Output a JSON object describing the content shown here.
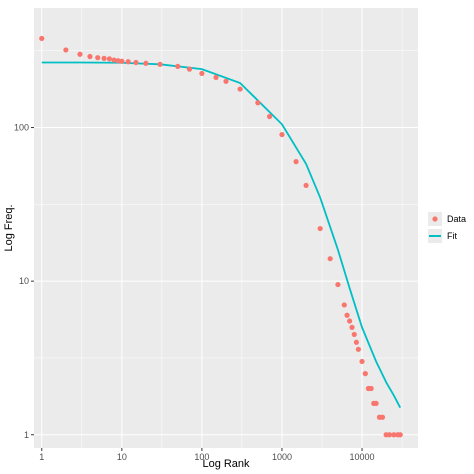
{
  "chart_data": {
    "type": "scatter",
    "xlabel": "Log Rank",
    "ylabel": "Log Freq.",
    "x_scale": "log10",
    "y_scale": "log10",
    "xlim": [
      0.8,
      50000
    ],
    "ylim": [
      0.82,
      600
    ],
    "x_ticks": [
      {
        "value": 1,
        "label": "1"
      },
      {
        "value": 10,
        "label": "10"
      },
      {
        "value": 100,
        "label": "100"
      },
      {
        "value": 1000,
        "label": "1000"
      },
      {
        "value": 10000,
        "label": "10000"
      }
    ],
    "y_ticks": [
      {
        "value": 1,
        "label": "1"
      },
      {
        "value": 10,
        "label": "10"
      },
      {
        "value": 100,
        "label": "100"
      }
    ],
    "grid": true,
    "legend_position": "right",
    "colors": {
      "panel_bg": "#ebebeb",
      "grid": "#ffffff",
      "data": "#f8766d",
      "fit": "#00bfc4"
    },
    "series": [
      {
        "name": "Data",
        "kind": "points",
        "x": [
          1,
          2,
          3,
          4,
          5,
          6,
          7,
          8,
          9,
          10,
          12,
          15,
          20,
          30,
          50,
          70,
          100,
          150,
          200,
          300,
          500,
          700,
          1000,
          1500,
          2000,
          3000,
          4000,
          5000,
          6000,
          6500,
          7000,
          7500,
          8000,
          8500,
          9000,
          10000,
          11000,
          12000,
          13000,
          14000,
          15000,
          16500,
          18000,
          20000,
          22000,
          25000,
          28000,
          30000
        ],
        "y": [
          380,
          320,
          300,
          290,
          285,
          282,
          280,
          275,
          272,
          270,
          268,
          265,
          262,
          258,
          250,
          240,
          225,
          212,
          200,
          178,
          145,
          118,
          90,
          60,
          42,
          22,
          14,
          9.5,
          7,
          6,
          5.5,
          5,
          4.5,
          4,
          3.6,
          3,
          2.5,
          2,
          2,
          1.6,
          1.6,
          1.3,
          1.3,
          1,
          1,
          1,
          1,
          1
        ]
      },
      {
        "name": "Fit",
        "kind": "line",
        "x": [
          1,
          3,
          10,
          30,
          100,
          300,
          1000,
          2000,
          3000,
          5000,
          7000,
          10000,
          15000,
          20000,
          25000,
          30000
        ],
        "y": [
          265,
          265,
          264,
          258,
          240,
          195,
          105,
          58,
          35,
          16,
          9,
          5,
          3,
          2.2,
          1.8,
          1.5
        ]
      }
    ]
  }
}
